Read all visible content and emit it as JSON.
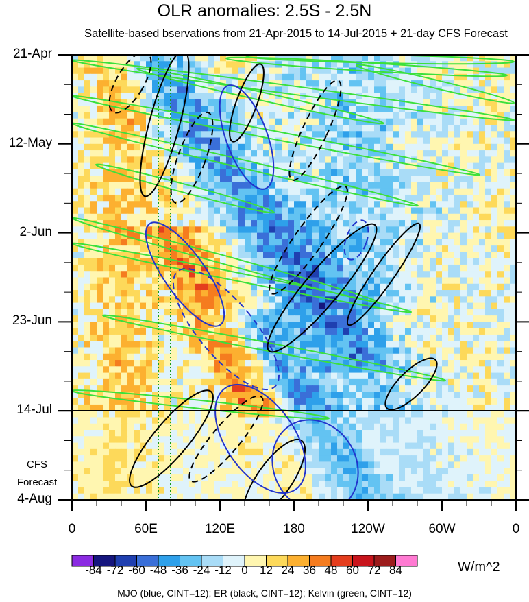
{
  "chart_data": {
    "type": "heatmap",
    "title": "OLR anomalies: 2.5S - 2.5N",
    "subtitle": "Satellite-based bservations from 21-Apr-2015 to 14-Jul-2015 + 21-day CFS Forecast",
    "y_axis": {
      "direction": "time (downward)",
      "tick_labels": [
        "21-Apr",
        "12-May",
        "2-Jun",
        "23-Jun",
        "14-Jul",
        "4-Aug"
      ],
      "range": [
        "21-Apr-2015",
        "4-Aug-2015"
      ]
    },
    "x_axis": {
      "quantity": "longitude",
      "tick_labels": [
        "0",
        "60E",
        "120E",
        "180",
        "120W",
        "60W",
        "0"
      ],
      "range_deg_east": [
        0,
        360
      ]
    },
    "forecast_divider": "14-Jul",
    "forecast_label": [
      "CFS",
      "Forecast"
    ],
    "colorbar": {
      "units": "W/m^2",
      "levels": [
        "-84",
        "-72",
        "-60",
        "-48",
        "-36",
        "-24",
        "-12",
        "0",
        "12",
        "24",
        "36",
        "48",
        "60",
        "72",
        "84"
      ],
      "colors": [
        "#8b2be2",
        "#16167e",
        "#1f3fb0",
        "#3a6fd8",
        "#2ea0ea",
        "#63c3f2",
        "#a9dcf7",
        "#dff3fb",
        "#fff6b0",
        "#fdd95a",
        "#fcb030",
        "#f57c1f",
        "#e43d1d",
        "#c8141c",
        "#9c1c1c",
        "#ff7ad2"
      ]
    },
    "overlays": [
      {
        "name": "MJO",
        "color": "blue",
        "cint": 12
      },
      {
        "name": "ER",
        "color": "black",
        "cint": 12
      },
      {
        "name": "Kelvin",
        "color": "green",
        "cint": 12
      }
    ],
    "reference_lines": [
      {
        "style": "dotted green vertical",
        "longitudes_deg_east": [
          70,
          80
        ]
      }
    ],
    "footer": "MJO (blue, CINT=12); ER (black, CINT=12); Kelvin (green, CINT=12)"
  }
}
